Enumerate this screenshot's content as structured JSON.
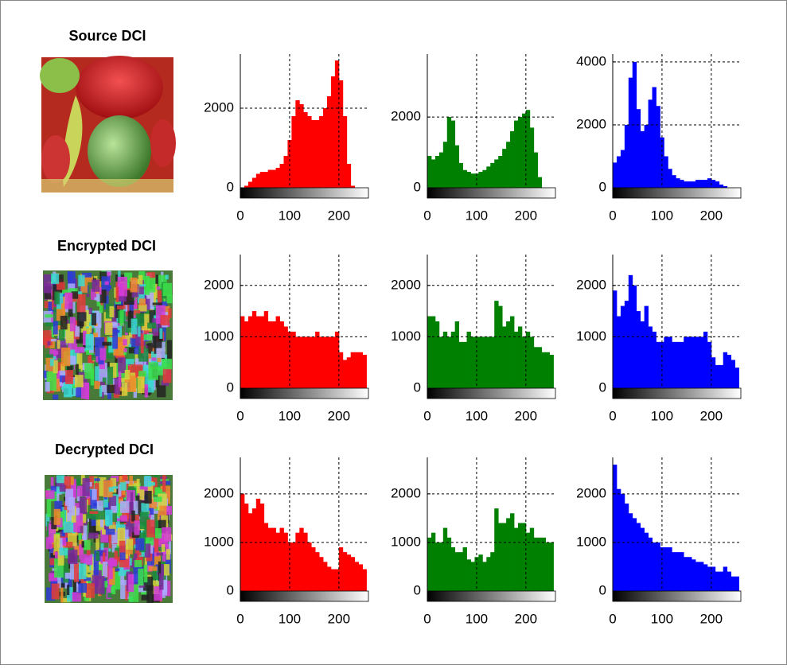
{
  "images": [
    {
      "title": "Source DCI"
    },
    {
      "title": "Encrypted DCI"
    },
    {
      "title": "Decrypted DCI"
    }
  ],
  "chart_data": [
    {
      "type": "histogram",
      "color": "#ff0000",
      "grid": true,
      "xlim": [
        0,
        260
      ],
      "xticks": [
        0,
        100,
        200
      ],
      "ylim": [
        0,
        3360
      ],
      "yticks": [
        0,
        2000
      ],
      "bins": [
        0,
        8,
        16,
        24,
        32,
        40,
        48,
        56,
        64,
        72,
        80,
        88,
        96,
        104,
        112,
        120,
        128,
        136,
        144,
        152,
        160,
        168,
        176,
        184,
        192,
        200,
        208,
        216,
        224,
        232,
        240,
        248,
        256
      ],
      "values": [
        0,
        50,
        150,
        250,
        350,
        400,
        400,
        450,
        450,
        500,
        600,
        800,
        1200,
        1800,
        2200,
        2100,
        1900,
        1800,
        1700,
        1700,
        1800,
        2000,
        2300,
        2800,
        3200,
        2700,
        1800,
        600,
        50,
        0,
        0,
        0
      ]
    },
    {
      "type": "histogram",
      "color": "#008000",
      "grid": true,
      "xlim": [
        0,
        260
      ],
      "xticks": [
        0,
        100,
        200
      ],
      "ylim": [
        0,
        3780
      ],
      "yticks": [
        0,
        2000
      ],
      "bins": [
        0,
        8,
        16,
        24,
        32,
        40,
        48,
        56,
        64,
        72,
        80,
        88,
        96,
        104,
        112,
        120,
        128,
        136,
        144,
        152,
        160,
        168,
        176,
        184,
        192,
        200,
        208,
        216,
        224,
        232,
        240,
        248,
        256
      ],
      "values": [
        900,
        800,
        900,
        1000,
        1300,
        2000,
        1900,
        1200,
        700,
        500,
        450,
        400,
        400,
        450,
        500,
        600,
        700,
        800,
        900,
        1100,
        1300,
        1600,
        1900,
        2000,
        2100,
        2200,
        1700,
        1000,
        300,
        0,
        0,
        0
      ]
    },
    {
      "type": "histogram",
      "color": "#0000ff",
      "grid": true,
      "xlim": [
        0,
        260
      ],
      "xticks": [
        0,
        100,
        200
      ],
      "ylim": [
        0,
        4250
      ],
      "yticks": [
        0,
        2000,
        4000
      ],
      "bins": [
        0,
        8,
        16,
        24,
        32,
        40,
        48,
        56,
        64,
        72,
        80,
        88,
        96,
        104,
        112,
        120,
        128,
        136,
        144,
        152,
        160,
        168,
        176,
        184,
        192,
        200,
        208,
        216,
        224,
        232,
        240,
        248,
        256
      ],
      "values": [
        800,
        1000,
        1200,
        2000,
        3500,
        4000,
        2500,
        1800,
        2000,
        2800,
        3200,
        2600,
        1600,
        1000,
        600,
        400,
        300,
        250,
        200,
        200,
        200,
        250,
        250,
        250,
        300,
        250,
        200,
        100,
        50,
        0,
        0,
        0
      ]
    },
    {
      "type": "histogram",
      "color": "#ff0000",
      "grid": true,
      "xlim": [
        0,
        260
      ],
      "xticks": [
        0,
        100,
        200
      ],
      "ylim": [
        0,
        2600
      ],
      "yticks": [
        0,
        1000,
        2000
      ],
      "bins": [
        0,
        8,
        16,
        24,
        32,
        40,
        48,
        56,
        64,
        72,
        80,
        88,
        96,
        104,
        112,
        120,
        128,
        136,
        144,
        152,
        160,
        168,
        176,
        184,
        192,
        200,
        208,
        216,
        224,
        232,
        240,
        248,
        256
      ],
      "values": [
        1400,
        1300,
        1400,
        1500,
        1400,
        1400,
        1500,
        1300,
        1300,
        1400,
        1300,
        1200,
        1100,
        1100,
        1000,
        1000,
        1000,
        1000,
        1000,
        1100,
        1000,
        1000,
        1000,
        1000,
        1100,
        700,
        550,
        600,
        700,
        700,
        700,
        650
      ]
    },
    {
      "type": "histogram",
      "color": "#008000",
      "grid": true,
      "xlim": [
        0,
        260
      ],
      "xticks": [
        0,
        100,
        200
      ],
      "ylim": [
        0,
        2600
      ],
      "yticks": [
        0,
        1000,
        2000
      ],
      "bins": [
        0,
        8,
        16,
        24,
        32,
        40,
        48,
        56,
        64,
        72,
        80,
        88,
        96,
        104,
        112,
        120,
        128,
        136,
        144,
        152,
        160,
        168,
        176,
        184,
        192,
        200,
        208,
        216,
        224,
        232,
        240,
        248,
        256
      ],
      "values": [
        1400,
        1400,
        1300,
        1000,
        1100,
        1000,
        1100,
        1300,
        900,
        900,
        1100,
        1000,
        1000,
        1000,
        1000,
        1000,
        1000,
        1700,
        1600,
        1200,
        1300,
        1400,
        1100,
        1200,
        1000,
        1100,
        1000,
        800,
        800,
        700,
        700,
        650
      ]
    },
    {
      "type": "histogram",
      "color": "#0000ff",
      "grid": true,
      "xlim": [
        0,
        260
      ],
      "xticks": [
        0,
        100,
        200
      ],
      "ylim": [
        0,
        2600
      ],
      "yticks": [
        0,
        1000,
        2000
      ],
      "bins": [
        0,
        8,
        16,
        24,
        32,
        40,
        48,
        56,
        64,
        72,
        80,
        88,
        96,
        104,
        112,
        120,
        128,
        136,
        144,
        152,
        160,
        168,
        176,
        184,
        192,
        200,
        208,
        216,
        224,
        232,
        240,
        248,
        256
      ],
      "values": [
        1900,
        1400,
        1600,
        1700,
        2200,
        2000,
        1500,
        1300,
        1600,
        1200,
        1100,
        900,
        900,
        1000,
        1000,
        900,
        900,
        900,
        1000,
        1000,
        1000,
        1000,
        1000,
        1100,
        900,
        600,
        450,
        450,
        700,
        650,
        550,
        400
      ]
    },
    {
      "type": "histogram",
      "color": "#ff0000",
      "grid": true,
      "xlim": [
        0,
        260
      ],
      "xticks": [
        0,
        100,
        200
      ],
      "ylim": [
        0,
        2750
      ],
      "yticks": [
        0,
        1000,
        2000
      ],
      "bins": [
        0,
        8,
        16,
        24,
        32,
        40,
        48,
        56,
        64,
        72,
        80,
        88,
        96,
        104,
        112,
        120,
        128,
        136,
        144,
        152,
        160,
        168,
        176,
        184,
        192,
        200,
        208,
        216,
        224,
        232,
        240,
        248,
        256
      ],
      "values": [
        2000,
        1800,
        1600,
        1700,
        1900,
        1800,
        1400,
        1300,
        1300,
        1200,
        1300,
        1200,
        1000,
        1000,
        1200,
        1300,
        1200,
        1000,
        900,
        800,
        700,
        600,
        500,
        450,
        450,
        900,
        800,
        750,
        700,
        600,
        550,
        450
      ]
    },
    {
      "type": "histogram",
      "color": "#008000",
      "grid": true,
      "xlim": [
        0,
        260
      ],
      "xticks": [
        0,
        100,
        200
      ],
      "ylim": [
        0,
        2750
      ],
      "yticks": [
        0,
        1000,
        2000
      ],
      "bins": [
        0,
        8,
        16,
        24,
        32,
        40,
        48,
        56,
        64,
        72,
        80,
        88,
        96,
        104,
        112,
        120,
        128,
        136,
        144,
        152,
        160,
        168,
        176,
        184,
        192,
        200,
        208,
        216,
        224,
        232,
        240,
        248,
        256
      ],
      "values": [
        1100,
        1200,
        1000,
        1000,
        1300,
        1100,
        900,
        800,
        800,
        900,
        650,
        600,
        700,
        750,
        600,
        700,
        800,
        1700,
        1400,
        1400,
        1500,
        1600,
        1300,
        1400,
        1400,
        1200,
        1300,
        1100,
        1100,
        1100,
        1000,
        1000
      ]
    },
    {
      "type": "histogram",
      "color": "#0000ff",
      "grid": true,
      "xlim": [
        0,
        260
      ],
      "xticks": [
        0,
        100,
        200
      ],
      "ylim": [
        0,
        2750
      ],
      "yticks": [
        0,
        1000,
        2000
      ],
      "bins": [
        0,
        8,
        16,
        24,
        32,
        40,
        48,
        56,
        64,
        72,
        80,
        88,
        96,
        104,
        112,
        120,
        128,
        136,
        144,
        152,
        160,
        168,
        176,
        184,
        192,
        200,
        208,
        216,
        224,
        232,
        240,
        248,
        256
      ],
      "values": [
        2600,
        2100,
        2000,
        1800,
        1600,
        1500,
        1400,
        1300,
        1200,
        1100,
        1000,
        1000,
        900,
        900,
        900,
        800,
        800,
        800,
        700,
        700,
        650,
        600,
        600,
        550,
        500,
        500,
        400,
        400,
        500,
        400,
        300,
        300
      ]
    }
  ]
}
